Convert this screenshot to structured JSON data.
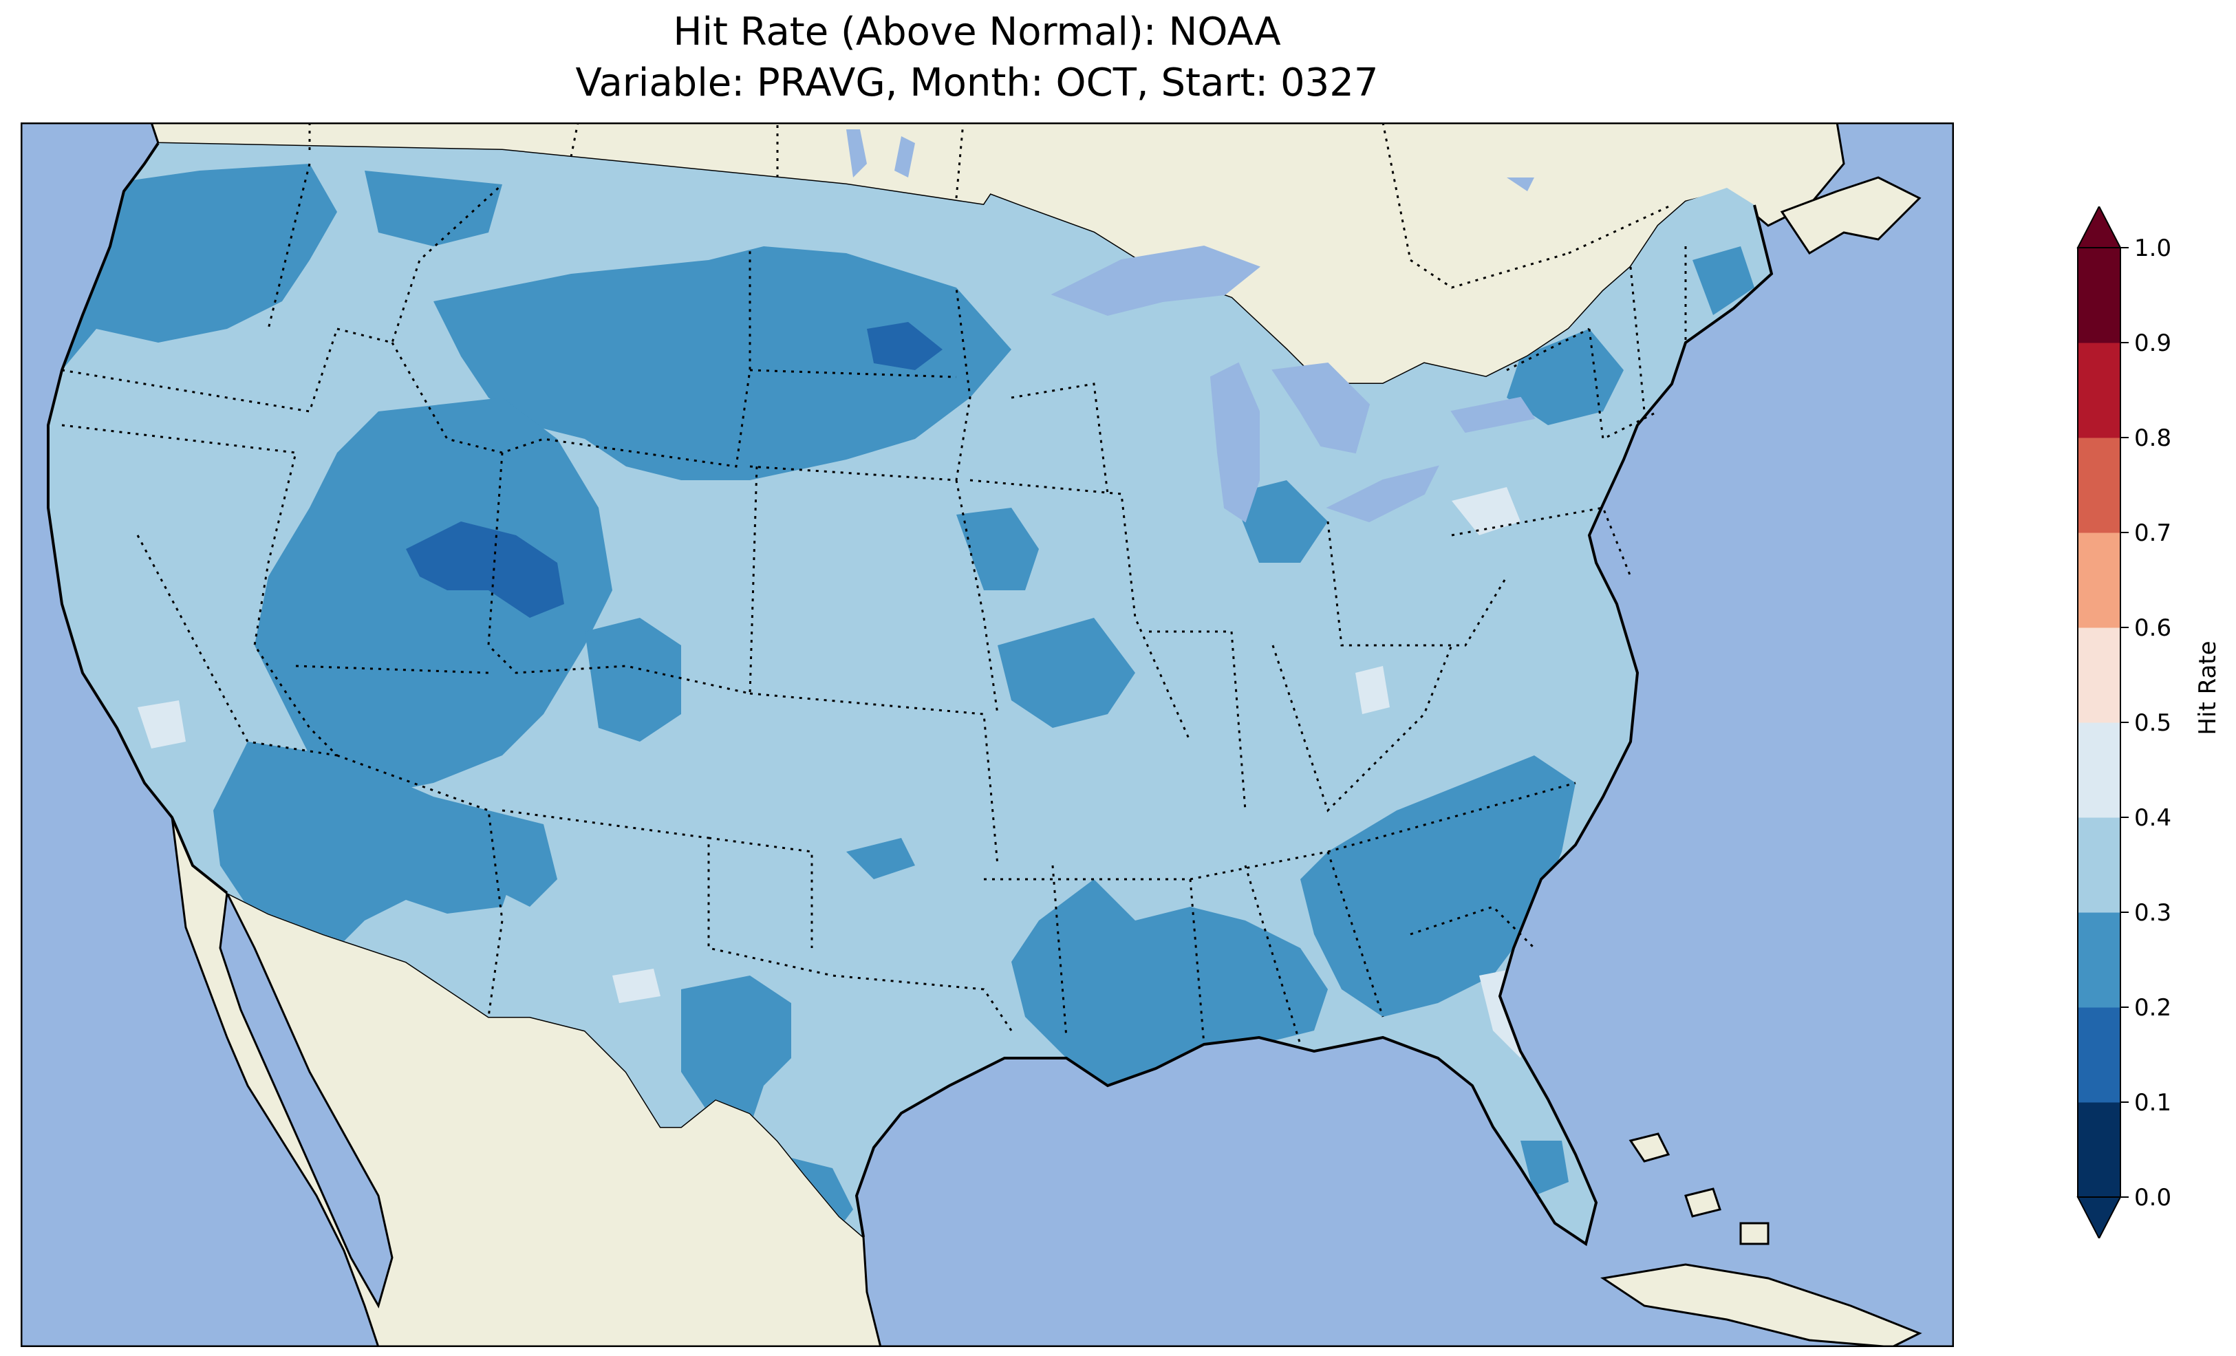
{
  "title": {
    "line1": "Hit Rate (Above Normal): NOAA",
    "line2": "Variable: PRAVG, Month: OCT, Start: 0327"
  },
  "colors": {
    "ocean": "#97b6e1",
    "land": "#efeedc",
    "border": "#000000"
  },
  "colorbar": {
    "label": "Hit Rate",
    "extend": "both",
    "levels": [
      0.0,
      0.1,
      0.2,
      0.3,
      0.4,
      0.5,
      0.6,
      0.7,
      0.8,
      0.9,
      1.0
    ],
    "tick_labels": [
      "0.0",
      "0.1",
      "0.2",
      "0.3",
      "0.4",
      "0.5",
      "0.6",
      "0.7",
      "0.8",
      "0.9",
      "1.0"
    ],
    "colors": [
      "#053061",
      "#2166ac",
      "#4393c3",
      "#a6cee3",
      "#dce9f2",
      "#f8e1d7",
      "#f4a582",
      "#d6604d",
      "#b2182b",
      "#67001f"
    ],
    "under_color": "#053061",
    "over_color": "#67001f"
  },
  "map": {
    "region": "Contiguous United States",
    "field": "hit rate",
    "dominant_range": [
      0.3,
      0.4
    ],
    "notable_areas": [
      {
        "area": "northern Utah / southwest Wyoming",
        "range": [
          0.1,
          0.2
        ]
      },
      {
        "area": "northeast North Dakota",
        "range": [
          0.1,
          0.2
        ]
      },
      {
        "area": "Pacific Northwest",
        "range": [
          0.2,
          0.3
        ]
      },
      {
        "area": "eastern Montana / Wyoming / South Dakota",
        "range": [
          0.2,
          0.3
        ]
      },
      {
        "area": "Arizona / New Mexico",
        "range": [
          0.2,
          0.3
        ]
      },
      {
        "area": "Gulf Coast / Southeast",
        "range": [
          0.2,
          0.3
        ]
      },
      {
        "area": "Central Florida",
        "range": [
          0.4,
          0.5
        ]
      }
    ]
  }
}
